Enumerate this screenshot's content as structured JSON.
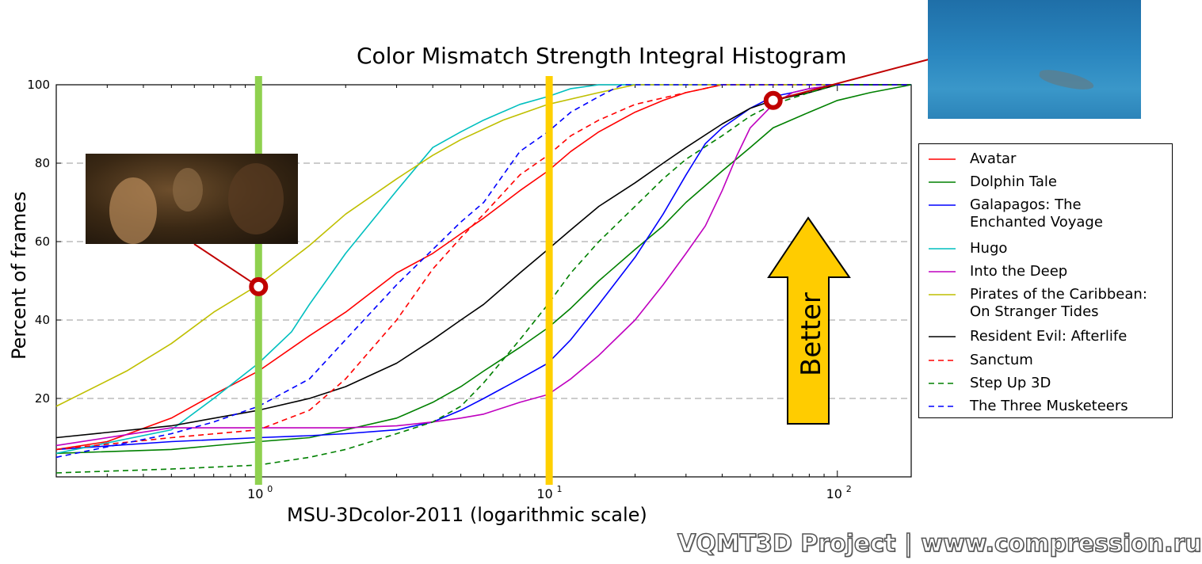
{
  "chart_data": {
    "type": "line",
    "title": "Color Mismatch Strength Integral Histogram",
    "xlabel": "MSU-3Dcolor-2011 (logarithmic scale)",
    "ylabel": "Percent of frames",
    "xscale": "log",
    "xlim": [
      0.2,
      180
    ],
    "ylim": [
      0,
      100
    ],
    "x_ticks": [
      {
        "value": 1,
        "label_base": "10",
        "label_exp": "0"
      },
      {
        "value": 10,
        "label_base": "10",
        "label_exp": "1"
      },
      {
        "value": 100,
        "label_base": "10",
        "label_exp": "2"
      }
    ],
    "y_ticks": [
      20,
      40,
      60,
      80,
      100
    ],
    "grid": "horizontal dashed",
    "legend_position": "right",
    "series": [
      {
        "name": "Avatar",
        "color": "#ff0000",
        "dash": "solid",
        "points": [
          [
            0.2,
            7
          ],
          [
            0.3,
            9
          ],
          [
            0.5,
            15
          ],
          [
            0.7,
            21
          ],
          [
            1,
            27
          ],
          [
            1.5,
            36
          ],
          [
            2,
            42
          ],
          [
            3,
            52
          ],
          [
            4,
            57
          ],
          [
            5,
            62
          ],
          [
            6,
            66
          ],
          [
            8,
            73
          ],
          [
            10,
            78
          ],
          [
            12,
            83
          ],
          [
            15,
            88
          ],
          [
            20,
            93
          ],
          [
            25,
            96
          ],
          [
            30,
            98
          ],
          [
            40,
            100
          ],
          [
            180,
            100
          ]
        ]
      },
      {
        "name": "Dolphin Tale",
        "color": "#008000",
        "dash": "solid",
        "points": [
          [
            0.2,
            6
          ],
          [
            0.5,
            7
          ],
          [
            1,
            9
          ],
          [
            1.5,
            10
          ],
          [
            2,
            12
          ],
          [
            3,
            15
          ],
          [
            4,
            19
          ],
          [
            5,
            23
          ],
          [
            6,
            27
          ],
          [
            8,
            33
          ],
          [
            10,
            38
          ],
          [
            12,
            43
          ],
          [
            15,
            50
          ],
          [
            20,
            58
          ],
          [
            25,
            64
          ],
          [
            30,
            70
          ],
          [
            40,
            78
          ],
          [
            50,
            84
          ],
          [
            60,
            89
          ],
          [
            80,
            93
          ],
          [
            100,
            96
          ],
          [
            130,
            98
          ],
          [
            180,
            100
          ]
        ]
      },
      {
        "name": "Galapagos: The Enchanted Voyage",
        "color": "#0000ff",
        "dash": "solid",
        "points": [
          [
            0.2,
            7
          ],
          [
            0.5,
            9
          ],
          [
            1,
            10
          ],
          [
            1.5,
            10.5
          ],
          [
            2,
            11
          ],
          [
            3,
            12
          ],
          [
            4,
            14
          ],
          [
            5,
            17
          ],
          [
            6,
            20
          ],
          [
            8,
            25
          ],
          [
            10,
            29
          ],
          [
            12,
            35
          ],
          [
            15,
            44
          ],
          [
            20,
            56
          ],
          [
            25,
            67
          ],
          [
            30,
            77
          ],
          [
            35,
            85
          ],
          [
            40,
            89
          ],
          [
            50,
            94
          ],
          [
            60,
            97
          ],
          [
            70,
            98
          ],
          [
            80,
            99
          ],
          [
            100,
            100
          ],
          [
            180,
            100
          ]
        ]
      },
      {
        "name": "Hugo",
        "color": "#00bfbf",
        "dash": "solid",
        "points": [
          [
            0.2,
            6
          ],
          [
            0.5,
            12
          ],
          [
            0.7,
            20
          ],
          [
            1,
            29
          ],
          [
            1.3,
            37
          ],
          [
            1.5,
            44
          ],
          [
            2,
            57
          ],
          [
            3,
            73
          ],
          [
            4,
            84
          ],
          [
            5,
            88
          ],
          [
            6,
            91
          ],
          [
            8,
            95
          ],
          [
            10,
            97
          ],
          [
            12,
            99
          ],
          [
            15,
            100
          ],
          [
            180,
            100
          ]
        ]
      },
      {
        "name": "Into the Deep",
        "color": "#bf00bf",
        "dash": "solid",
        "points": [
          [
            0.2,
            8
          ],
          [
            0.5,
            12.5
          ],
          [
            1,
            12.5
          ],
          [
            2,
            12.5
          ],
          [
            3,
            13
          ],
          [
            4,
            14
          ],
          [
            5,
            15
          ],
          [
            6,
            16
          ],
          [
            8,
            19
          ],
          [
            10,
            21
          ],
          [
            12,
            25
          ],
          [
            15,
            31
          ],
          [
            20,
            40
          ],
          [
            25,
            49
          ],
          [
            30,
            57
          ],
          [
            35,
            64
          ],
          [
            40,
            73
          ],
          [
            45,
            82
          ],
          [
            50,
            89
          ],
          [
            60,
            95
          ],
          [
            70,
            98
          ],
          [
            80,
            99
          ],
          [
            100,
            100
          ],
          [
            180,
            100
          ]
        ]
      },
      {
        "name": "Pirates of the Caribbean: On Stranger Tides",
        "color": "#bfbf00",
        "dash": "solid",
        "points": [
          [
            0.2,
            18
          ],
          [
            0.35,
            27
          ],
          [
            0.5,
            34
          ],
          [
            0.7,
            42
          ],
          [
            1,
            49
          ],
          [
            1.5,
            59
          ],
          [
            2,
            67
          ],
          [
            3,
            76
          ],
          [
            4,
            82
          ],
          [
            5,
            86
          ],
          [
            7,
            91
          ],
          [
            10,
            95
          ],
          [
            15,
            98
          ],
          [
            20,
            100
          ],
          [
            180,
            100
          ]
        ]
      },
      {
        "name": "Resident Evil: Afterlife",
        "color": "#000000",
        "dash": "solid",
        "points": [
          [
            0.2,
            10
          ],
          [
            0.5,
            13
          ],
          [
            1,
            17
          ],
          [
            1.5,
            20
          ],
          [
            2,
            23
          ],
          [
            3,
            29
          ],
          [
            4,
            35
          ],
          [
            5,
            40
          ],
          [
            6,
            44
          ],
          [
            8,
            52
          ],
          [
            10,
            58
          ],
          [
            12,
            63
          ],
          [
            15,
            69
          ],
          [
            20,
            75
          ],
          [
            25,
            80
          ],
          [
            30,
            84
          ],
          [
            40,
            90
          ],
          [
            50,
            94
          ],
          [
            60,
            96
          ],
          [
            80,
            98
          ],
          [
            100,
            100
          ],
          [
            180,
            100
          ]
        ]
      },
      {
        "name": "Sanctum",
        "color": "#ff0000",
        "dash": "dashed",
        "points": [
          [
            0.2,
            7
          ],
          [
            0.5,
            10
          ],
          [
            1,
            12
          ],
          [
            1.5,
            17
          ],
          [
            2,
            25
          ],
          [
            3,
            40
          ],
          [
            4,
            53
          ],
          [
            5,
            61
          ],
          [
            6,
            67
          ],
          [
            8,
            77
          ],
          [
            10,
            82
          ],
          [
            12,
            87
          ],
          [
            15,
            91
          ],
          [
            20,
            95
          ],
          [
            30,
            98
          ],
          [
            40,
            100
          ],
          [
            180,
            100
          ]
        ]
      },
      {
        "name": "Step Up 3D",
        "color": "#008000",
        "dash": "dashed",
        "points": [
          [
            0.2,
            1
          ],
          [
            0.5,
            2
          ],
          [
            1,
            3
          ],
          [
            1.5,
            5
          ],
          [
            2,
            7
          ],
          [
            3,
            11
          ],
          [
            4,
            14
          ],
          [
            5,
            18
          ],
          [
            6,
            24
          ],
          [
            8,
            35
          ],
          [
            10,
            44
          ],
          [
            12,
            52
          ],
          [
            15,
            60
          ],
          [
            20,
            69
          ],
          [
            25,
            76
          ],
          [
            30,
            81
          ],
          [
            40,
            87
          ],
          [
            50,
            92
          ],
          [
            60,
            95
          ],
          [
            80,
            98
          ],
          [
            100,
            100
          ],
          [
            180,
            100
          ]
        ]
      },
      {
        "name": "The Three Musketeers",
        "color": "#0000ff",
        "dash": "dashed",
        "points": [
          [
            0.2,
            5
          ],
          [
            0.5,
            11
          ],
          [
            0.7,
            14
          ],
          [
            1,
            18
          ],
          [
            1.5,
            25
          ],
          [
            2,
            35
          ],
          [
            3,
            49
          ],
          [
            4,
            58
          ],
          [
            5,
            65
          ],
          [
            6,
            70
          ],
          [
            8,
            83
          ],
          [
            10,
            88
          ],
          [
            12,
            93
          ],
          [
            15,
            97
          ],
          [
            18,
            100
          ],
          [
            180,
            100
          ]
        ]
      }
    ],
    "markers": [
      {
        "color": "#8fd14f",
        "x": 1,
        "kind": "vertical-line"
      },
      {
        "color": "#ffd000",
        "x": 10.1,
        "kind": "vertical-line"
      }
    ],
    "annotations": [
      {
        "x": 1,
        "y": 48.5,
        "color": "#c00000",
        "kind": "circle-callout"
      },
      {
        "x": 60,
        "y": 96,
        "color": "#c00000",
        "kind": "circle-callout"
      }
    ],
    "better_label": "Better",
    "arrow_color": "#ffcc00"
  },
  "credit": "VQMT3D Project | www.compression.ru"
}
